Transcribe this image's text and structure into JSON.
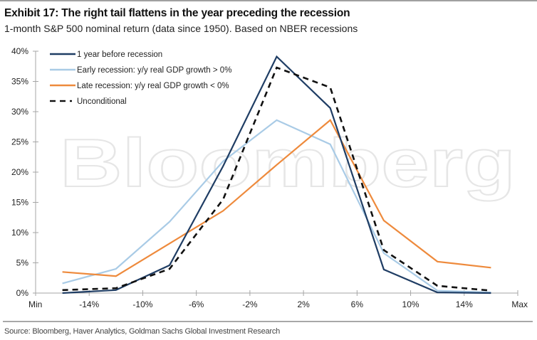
{
  "header": {
    "title": "Exhibit 17: The right tail flattens in the year preceding the recession",
    "subtitle": "1-month S&P 500 nominal return (data since 1950). Based on NBER recessions"
  },
  "footer": {
    "source": "Source: Bloomberg, Haver Analytics, Goldman Sachs Global Investment Research"
  },
  "watermark": "Bloomberg",
  "chart_data": {
    "type": "line",
    "title": "Exhibit 17: The right tail flattens in the year preceding the recession",
    "subtitle": "1-month S&P 500 nominal return (data since 1950). Based on NBER recessions",
    "xlabel": "",
    "ylabel": "",
    "x_tick_labels": [
      "Min",
      "-14%",
      "-10%",
      "-6%",
      "-2%",
      "2%",
      "6%",
      "10%",
      "14%",
      "Max"
    ],
    "categories": [
      "Min to -14%",
      "-14% to -10%",
      "-10% to -6%",
      "-6% to -2%",
      "-2% to 2%",
      "2% to 6%",
      "6% to 10%",
      "10% to 14%",
      "14% to Max"
    ],
    "y_tick_labels": [
      "0%",
      "5%",
      "10%",
      "15%",
      "20%",
      "25%",
      "30%",
      "35%",
      "40%"
    ],
    "ylim": [
      0,
      40
    ],
    "y_unit": "%",
    "grid": false,
    "legend_position": "top-left",
    "series": [
      {
        "name": "1 year before recession",
        "color": "#1f3d64",
        "style": "solid",
        "values": [
          0.0,
          0.5,
          4.6,
          21.0,
          39.1,
          30.6,
          3.9,
          0.1,
          0.0
        ]
      },
      {
        "name": "Early recession: y/y real GDP growth > 0%",
        "color": "#a9cbe6",
        "style": "solid",
        "values": [
          1.6,
          4.0,
          11.8,
          21.8,
          28.6,
          24.6,
          6.6,
          0.4,
          0.1
        ]
      },
      {
        "name": "Late recession: y/y real GDP growth < 0%",
        "color": "#ee8a3c",
        "style": "solid",
        "values": [
          3.5,
          2.8,
          8.2,
          13.6,
          21.2,
          28.6,
          12.0,
          5.2,
          4.2
        ]
      },
      {
        "name": "Unconditional",
        "color": "#111111",
        "style": "dashed",
        "values": [
          0.5,
          0.8,
          4.0,
          15.5,
          37.3,
          34.0,
          7.1,
          1.2,
          0.4
        ]
      }
    ]
  }
}
